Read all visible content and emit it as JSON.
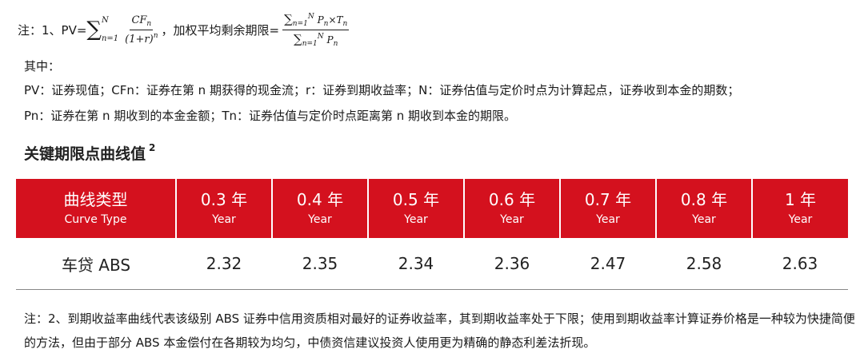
{
  "formula": {
    "prefix": "注：1、PV=",
    "sum_upper": "N",
    "sum_lower": "n=1",
    "pv_numerator": "CF",
    "pv_numerator_sub": "n",
    "pv_denominator": "(1+r)",
    "pv_denominator_sup": "n",
    "separator": "，加权平均剩余期限=",
    "wal_numerator": "P",
    "wal_numerator_mid": "×T",
    "wal_denominator": "P",
    "index_sub": "n"
  },
  "notes": {
    "qi_zhong": "其中：",
    "pv_def": "PV：证券现值；CFn：证券在第 n 期获得的现金流；r：证券到期收益率；N：证券估值与定价时点为计算起点，证券收到本金的期数；",
    "pn_def": "Pn：证券在第 n 期收到的本金金额；Tn：证券估值与定价时点距离第 n 期收到本金的期限。"
  },
  "section": {
    "title": "关键期限点曲线值",
    "footnote_ref": "2"
  },
  "table": {
    "header": [
      {
        "zh": "曲线类型",
        "en": "Curve Type"
      },
      {
        "zh": "0.3 年",
        "en": "Year"
      },
      {
        "zh": "0.4 年",
        "en": "Year"
      },
      {
        "zh": "0.5 年",
        "en": "Year"
      },
      {
        "zh": "0.6 年",
        "en": "Year"
      },
      {
        "zh": "0.7 年",
        "en": "Year"
      },
      {
        "zh": "0.8 年",
        "en": "Year"
      },
      {
        "zh": "1 年",
        "en": "Year"
      }
    ],
    "rows": [
      [
        "车贷 ABS",
        "2.32",
        "2.35",
        "2.34",
        "2.36",
        "2.47",
        "2.58",
        "2.63"
      ]
    ]
  },
  "footnote": {
    "text": "注：2、到期收益率曲线代表该级别 ABS 证券中信用资质相对最好的证券收益率，其到期收益率处于下限；使用到期收益率计算证券价格是一种较为快捷简便的方法，但由于部分 ABS 本金偿付在各期较为均匀，中债资信建议投资人使用更为精确的静态利差法折现。"
  },
  "colors": {
    "header_bg": "#d4111e",
    "header_text": "#ffffff"
  }
}
